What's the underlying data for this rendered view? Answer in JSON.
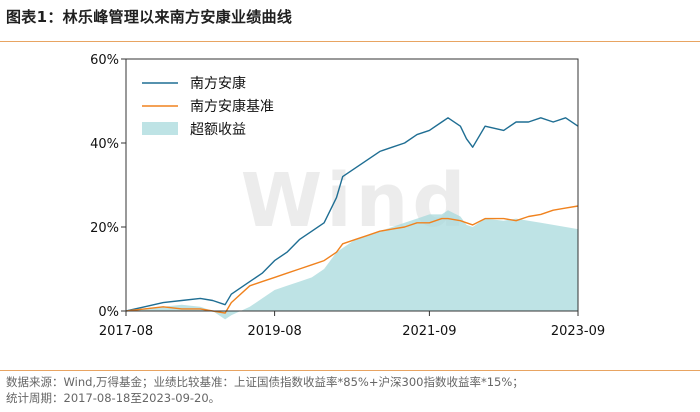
{
  "header": {
    "title": "图表1：林乐峰管理以来南方安康业绩曲线"
  },
  "footer": {
    "source": "数据来源：Wind,万得基金；业绩比较基准：上证国债指数收益率*85%+沪深300指数收益率*15%；",
    "period": "统计周期：2017-08-18至2023-09-20。"
  },
  "watermark": "Wind",
  "colors": {
    "fund": "#1f6e93",
    "benchmark": "#f0821e",
    "excess_fill": "#a8dadc",
    "rule": "#e8a462"
  },
  "chart_data": {
    "type": "line",
    "title": "",
    "xlabel": "",
    "ylabel": "",
    "x_ticks": [
      "2017-08",
      "2019-08",
      "2021-09",
      "2023-09"
    ],
    "y_ticks": [
      "0%",
      "20%",
      "40%",
      "60%"
    ],
    "ylim": [
      0,
      60
    ],
    "grid": false,
    "legend_position": "top-left",
    "series": [
      {
        "name": "南方安康",
        "style": "line",
        "points": [
          [
            "2017-08",
            0
          ],
          [
            "2017-11",
            1
          ],
          [
            "2018-02",
            2
          ],
          [
            "2018-05",
            2.5
          ],
          [
            "2018-08",
            3
          ],
          [
            "2018-10",
            2.5
          ],
          [
            "2018-12",
            1.5
          ],
          [
            "2019-01",
            4
          ],
          [
            "2019-04",
            7
          ],
          [
            "2019-06",
            9
          ],
          [
            "2019-08",
            12
          ],
          [
            "2019-10",
            14
          ],
          [
            "2019-12",
            17
          ],
          [
            "2020-02",
            19
          ],
          [
            "2020-04",
            21
          ],
          [
            "2020-06",
            27
          ],
          [
            "2020-07",
            32
          ],
          [
            "2020-09",
            34
          ],
          [
            "2020-11",
            36
          ],
          [
            "2021-01",
            38
          ],
          [
            "2021-03",
            39
          ],
          [
            "2021-05",
            40
          ],
          [
            "2021-07",
            42
          ],
          [
            "2021-09",
            43
          ],
          [
            "2021-11",
            45
          ],
          [
            "2021-12",
            46
          ],
          [
            "2022-02",
            44
          ],
          [
            "2022-03",
            41
          ],
          [
            "2022-04",
            39
          ],
          [
            "2022-06",
            44
          ],
          [
            "2022-09",
            43
          ],
          [
            "2022-11",
            45
          ],
          [
            "2023-01",
            45
          ],
          [
            "2023-03",
            46
          ],
          [
            "2023-05",
            45
          ],
          [
            "2023-07",
            46
          ],
          [
            "2023-09",
            44
          ]
        ]
      },
      {
        "name": "南方安康基准",
        "style": "line",
        "points": [
          [
            "2017-08",
            0
          ],
          [
            "2017-11",
            0.5
          ],
          [
            "2018-02",
            1
          ],
          [
            "2018-05",
            0.5
          ],
          [
            "2018-08",
            0.5
          ],
          [
            "2018-10",
            0
          ],
          [
            "2018-12",
            -0.5
          ],
          [
            "2019-01",
            2
          ],
          [
            "2019-04",
            6
          ],
          [
            "2019-06",
            7
          ],
          [
            "2019-08",
            8
          ],
          [
            "2019-10",
            9
          ],
          [
            "2019-12",
            10
          ],
          [
            "2020-02",
            11
          ],
          [
            "2020-04",
            12
          ],
          [
            "2020-06",
            14
          ],
          [
            "2020-07",
            16
          ],
          [
            "2020-09",
            17
          ],
          [
            "2020-11",
            18
          ],
          [
            "2021-01",
            19
          ],
          [
            "2021-03",
            19.5
          ],
          [
            "2021-05",
            20
          ],
          [
            "2021-07",
            21
          ],
          [
            "2021-09",
            21
          ],
          [
            "2021-11",
            22
          ],
          [
            "2021-12",
            22
          ],
          [
            "2022-02",
            21.5
          ],
          [
            "2022-03",
            21
          ],
          [
            "2022-04",
            20.5
          ],
          [
            "2022-06",
            22
          ],
          [
            "2022-09",
            22
          ],
          [
            "2022-11",
            21.5
          ],
          [
            "2023-01",
            22.5
          ],
          [
            "2023-03",
            23
          ],
          [
            "2023-05",
            24
          ],
          [
            "2023-07",
            24.5
          ],
          [
            "2023-09",
            25
          ]
        ]
      },
      {
        "name": "超额收益",
        "style": "area",
        "points": [
          [
            "2017-08",
            0
          ],
          [
            "2017-11",
            0.5
          ],
          [
            "2018-02",
            1
          ],
          [
            "2018-05",
            1.5
          ],
          [
            "2018-08",
            1
          ],
          [
            "2018-10",
            0
          ],
          [
            "2018-12",
            -2
          ],
          [
            "2019-01",
            -1
          ],
          [
            "2019-04",
            1
          ],
          [
            "2019-06",
            3
          ],
          [
            "2019-08",
            5
          ],
          [
            "2019-10",
            6
          ],
          [
            "2019-12",
            7
          ],
          [
            "2020-02",
            8
          ],
          [
            "2020-04",
            10
          ],
          [
            "2020-06",
            14
          ],
          [
            "2020-07",
            15
          ],
          [
            "2020-09",
            17
          ],
          [
            "2020-11",
            18
          ],
          [
            "2021-01",
            19
          ],
          [
            "2021-03",
            20
          ],
          [
            "2021-05",
            21
          ],
          [
            "2021-07",
            22
          ],
          [
            "2021-09",
            23
          ],
          [
            "2021-11",
            23
          ],
          [
            "2021-12",
            24
          ],
          [
            "2022-02",
            22.5
          ],
          [
            "2022-03",
            20.5
          ],
          [
            "2022-04",
            20
          ],
          [
            "2022-06",
            22
          ],
          [
            "2022-09",
            21.5
          ],
          [
            "2022-11",
            22
          ],
          [
            "2023-01",
            21.5
          ],
          [
            "2023-03",
            21
          ],
          [
            "2023-05",
            20.5
          ],
          [
            "2023-07",
            20
          ],
          [
            "2023-09",
            19.5
          ]
        ]
      }
    ]
  }
}
